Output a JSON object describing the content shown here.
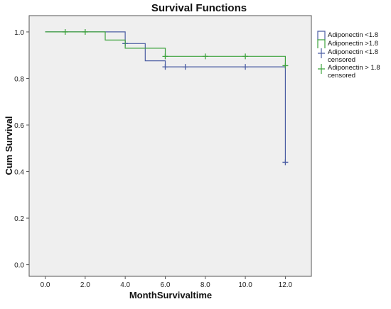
{
  "chart_data": {
    "type": "line",
    "title": "Survival Functions",
    "xlabel": "MonthSurvivaltime",
    "ylabel": "Cum Survival",
    "xlim": [
      -0.8,
      13.3
    ],
    "ylim": [
      -0.05,
      1.07
    ],
    "xticks": [
      0.0,
      2.0,
      4.0,
      6.0,
      8.0,
      10.0,
      12.0
    ],
    "xtick_labels": [
      "0.0",
      "2.0",
      "4.0",
      "6.0",
      "8.0",
      "10.0",
      "12.0"
    ],
    "yticks": [
      0.0,
      0.2,
      0.4,
      0.6,
      0.8,
      1.0
    ],
    "ytick_labels": [
      "0.0",
      "0.2",
      "0.4",
      "0.6",
      "0.8",
      "1.0"
    ],
    "grid": false,
    "legend_position": "right",
    "plot_background": "#efefef",
    "series": [
      {
        "name": "Adiponectin <1.8",
        "color": "#4b5ea3",
        "step_x": [
          0,
          4,
          4,
          5,
          5,
          6,
          6,
          12,
          12
        ],
        "step_y": [
          1.0,
          1.0,
          0.95,
          0.95,
          0.876,
          0.876,
          0.85,
          0.85,
          0.44
        ],
        "censored_label": "Adiponectin <1.8 censored",
        "censored_x": [
          4,
          6,
          7,
          10,
          12
        ],
        "censored_y": [
          0.95,
          0.85,
          0.85,
          0.85,
          0.44
        ]
      },
      {
        "name": "Adiponectin >1.8",
        "color": "#3ea33e",
        "step_x": [
          0,
          3,
          3,
          4,
          4,
          6,
          6,
          12,
          12
        ],
        "step_y": [
          1.0,
          1.0,
          0.965,
          0.965,
          0.93,
          0.93,
          0.895,
          0.895,
          0.855
        ],
        "censored_label": "Adiponectin > 1.8 censored",
        "censored_x": [
          1,
          2,
          6,
          8,
          10,
          12
        ],
        "censored_y": [
          1.0,
          1.0,
          0.895,
          0.895,
          0.895,
          0.855
        ]
      }
    ]
  }
}
